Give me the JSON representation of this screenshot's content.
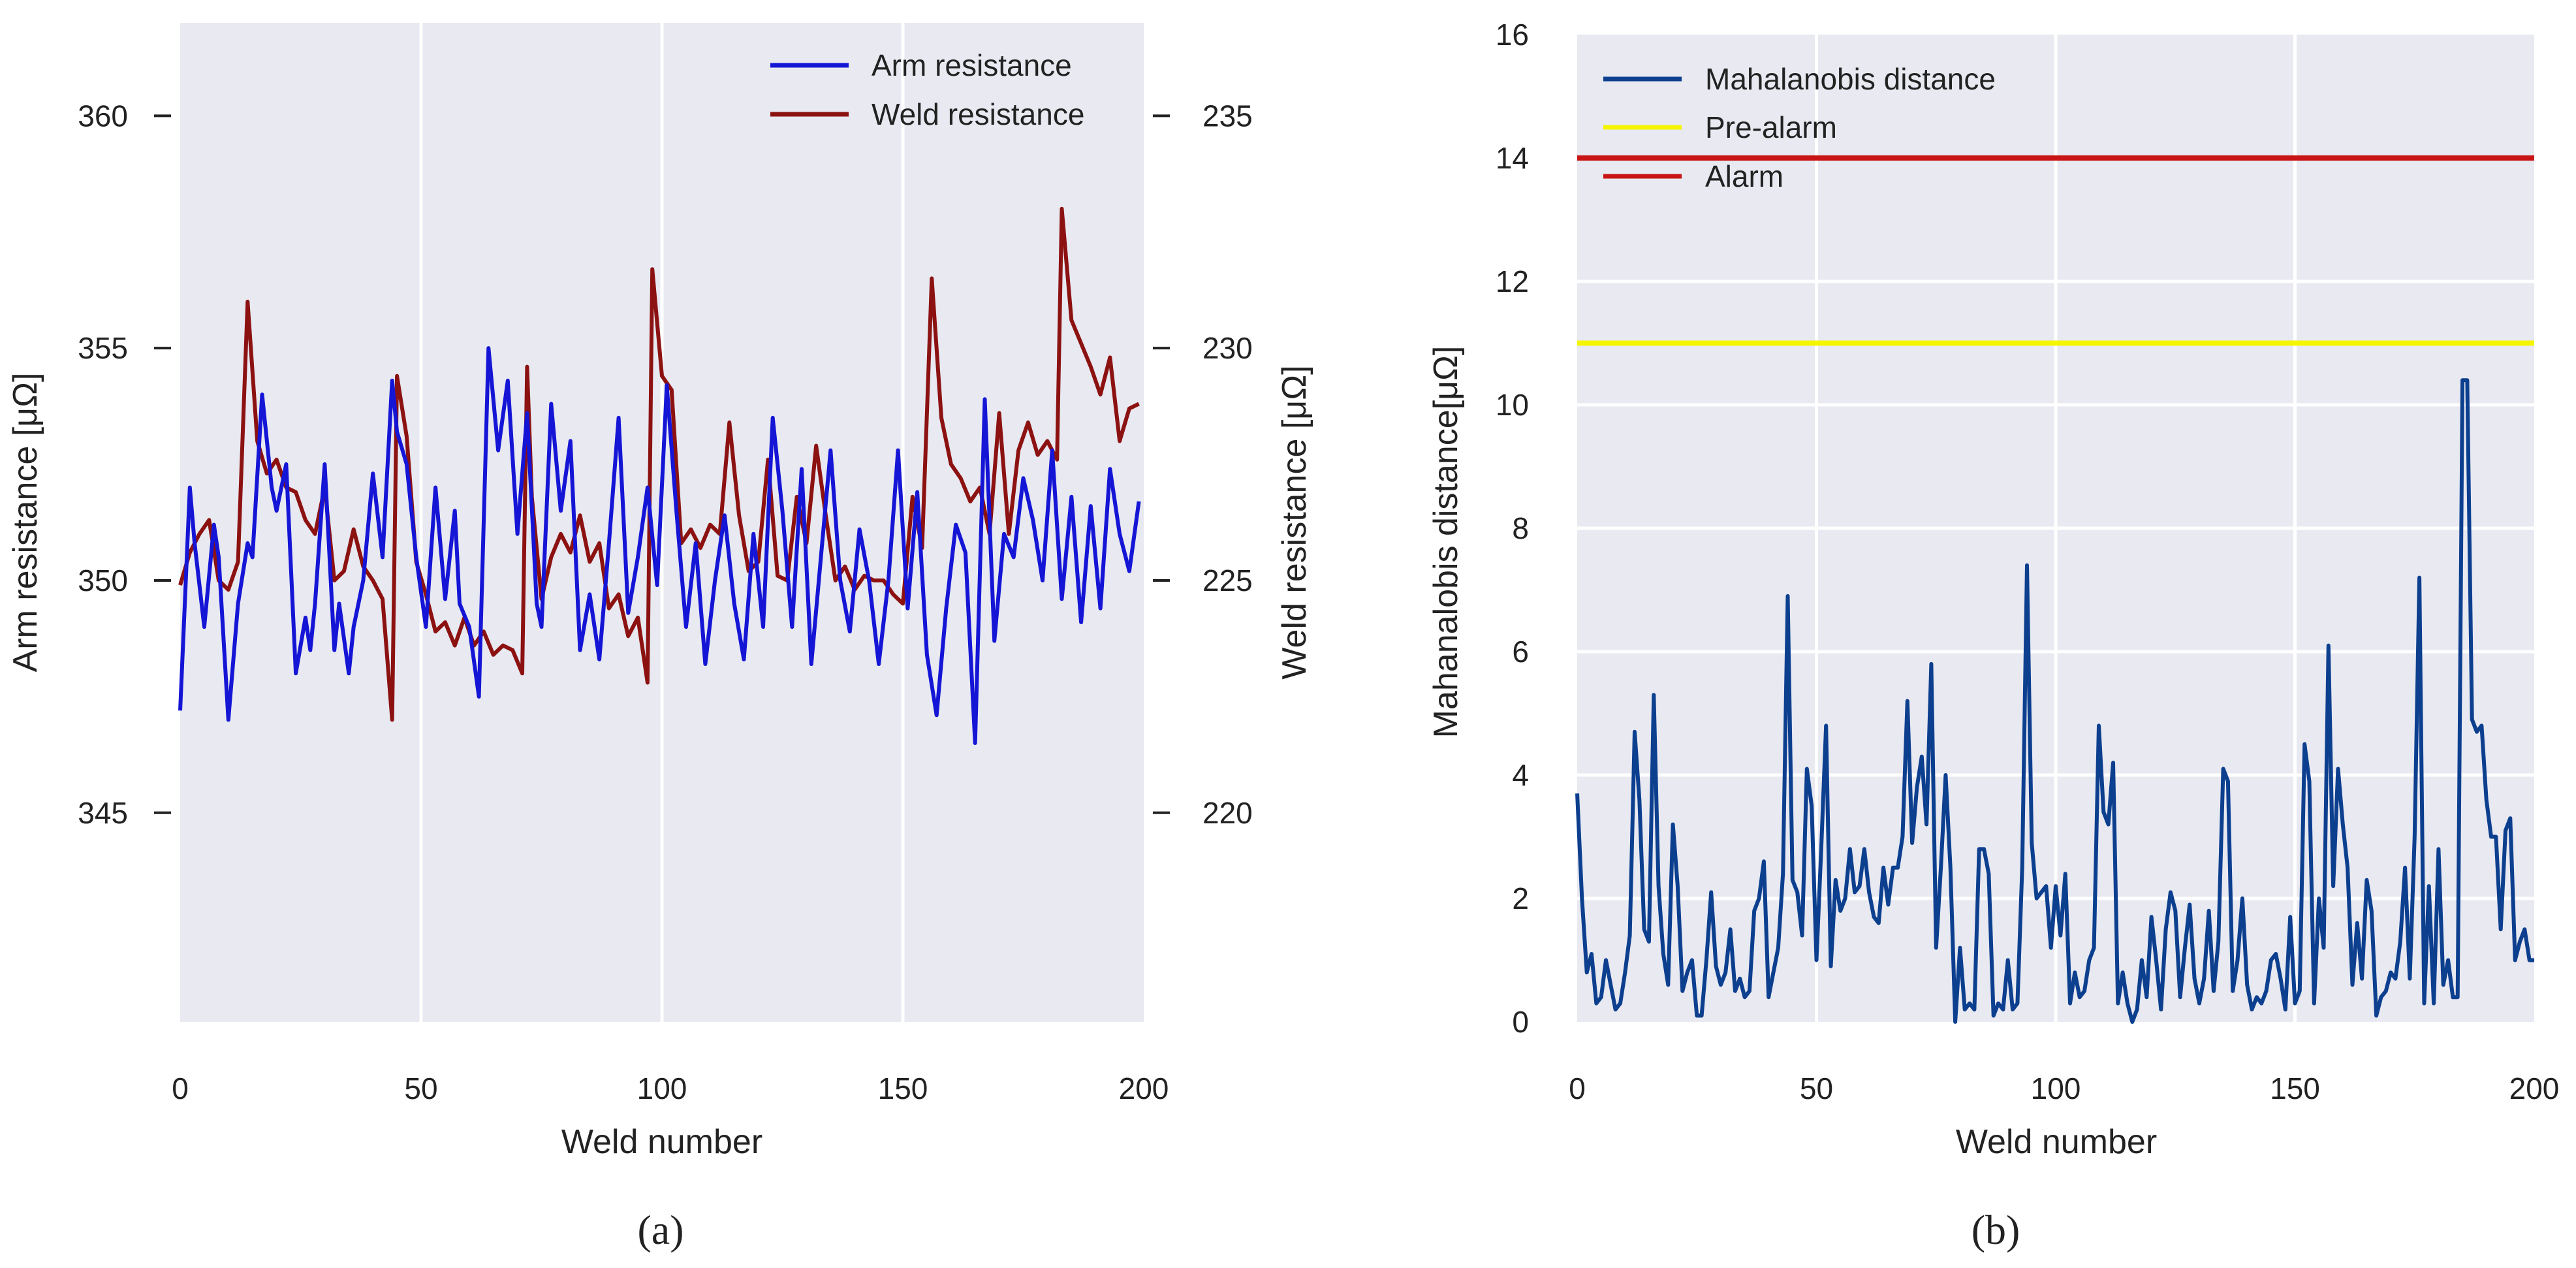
{
  "chart_data": [
    {
      "type": "line",
      "panel": "a",
      "caption": "(a)",
      "xlabel": "Weld number",
      "ylabel_left": "Arm resistance [μΩ]",
      "ylabel_right": "Weld resistance [μΩ]",
      "xlim": [
        0,
        200
      ],
      "ylim_left": [
        340.5,
        362.0
      ],
      "ylim_right": [
        215.5,
        237.0
      ],
      "xticks": [
        0,
        50,
        100,
        150,
        200
      ],
      "yticks_left": [
        345,
        350,
        355,
        360
      ],
      "yticks_right": [
        220,
        225,
        230,
        235
      ],
      "grid": true,
      "legend_position": "top-right",
      "colors": {
        "arm": "#1515d6",
        "weld": "#8c1212"
      },
      "series": [
        {
          "name": "Arm resistance",
          "axis": "left",
          "color": "#1515d6",
          "x": [
            0,
            2,
            3,
            5,
            7,
            8,
            10,
            12,
            14,
            15,
            17,
            19,
            20,
            22,
            24,
            26,
            27,
            28,
            30,
            32,
            33,
            35,
            36,
            38,
            40,
            42,
            44,
            45,
            47,
            49,
            51,
            53,
            55,
            57,
            58,
            60,
            62,
            64,
            66,
            68,
            70,
            72,
            74,
            75,
            77,
            79,
            81,
            83,
            85,
            87,
            89,
            91,
            93,
            95,
            97,
            99,
            101,
            103,
            105,
            107,
            109,
            111,
            113,
            115,
            117,
            119,
            121,
            123,
            125,
            127,
            129,
            131,
            133,
            135,
            137,
            139,
            141,
            143,
            145,
            147,
            149,
            151,
            153,
            155,
            157,
            159,
            161,
            163,
            165,
            167,
            169,
            171,
            173,
            175,
            177,
            179,
            181,
            183,
            185,
            187,
            189,
            191,
            193,
            195,
            197,
            199
          ],
          "values": [
            347.2,
            352.0,
            350.8,
            349.0,
            351.2,
            350.5,
            347.0,
            349.5,
            350.8,
            350.5,
            354.0,
            352.0,
            351.5,
            352.5,
            348.0,
            349.2,
            348.5,
            349.5,
            352.5,
            348.5,
            349.5,
            348.0,
            349.0,
            350.0,
            352.3,
            350.5,
            354.3,
            353.2,
            352.5,
            350.5,
            349.0,
            352.0,
            349.6,
            351.5,
            349.5,
            349.0,
            347.5,
            355.0,
            352.8,
            354.3,
            351.0,
            353.6,
            349.5,
            349.0,
            353.8,
            351.5,
            353.0,
            348.5,
            349.7,
            348.3,
            350.8,
            353.5,
            349.3,
            350.5,
            352.0,
            349.9,
            354.2,
            351.5,
            349.0,
            350.8,
            348.2,
            350.0,
            351.4,
            349.5,
            348.3,
            351.0,
            349.0,
            353.5,
            351.5,
            349.0,
            352.4,
            348.2,
            350.5,
            352.8,
            350.0,
            348.9,
            351.1,
            350.0,
            348.2,
            350.0,
            352.8,
            349.4,
            351.9,
            348.4,
            347.1,
            349.4,
            351.2,
            350.6,
            346.5,
            353.9,
            348.7,
            351.0,
            350.5,
            352.2,
            351.3,
            350.0,
            352.8,
            349.6,
            351.8,
            349.1,
            351.6,
            349.4,
            352.4,
            351.0,
            350.2,
            351.7
          ]
        },
        {
          "name": "Weld resistance",
          "axis": "right",
          "color": "#8c1212",
          "x": [
            0,
            2,
            4,
            6,
            8,
            10,
            12,
            14,
            16,
            18,
            20,
            22,
            24,
            26,
            28,
            30,
            32,
            34,
            36,
            38,
            40,
            42,
            44,
            45,
            47,
            49,
            51,
            53,
            55,
            57,
            59,
            61,
            63,
            65,
            67,
            69,
            71,
            72,
            73,
            75,
            77,
            79,
            81,
            83,
            85,
            87,
            89,
            91,
            93,
            95,
            97,
            98,
            100,
            102,
            104,
            106,
            108,
            110,
            112,
            114,
            116,
            118,
            120,
            122,
            124,
            126,
            128,
            130,
            132,
            134,
            136,
            138,
            140,
            142,
            144,
            146,
            148,
            150,
            152,
            154,
            156,
            158,
            160,
            162,
            164,
            166,
            168,
            170,
            172,
            174,
            176,
            178,
            180,
            182,
            183,
            185,
            187,
            189,
            191,
            193,
            195,
            197,
            199
          ],
          "values": [
            224.9,
            225.6,
            226.0,
            226.3,
            225.0,
            224.8,
            225.4,
            231.0,
            228.0,
            227.3,
            227.6,
            227.0,
            226.9,
            226.3,
            226.0,
            227.0,
            225.0,
            225.2,
            226.1,
            225.3,
            225.0,
            224.6,
            222.0,
            229.4,
            228.1,
            225.4,
            224.7,
            223.9,
            224.1,
            223.6,
            224.2,
            223.6,
            223.9,
            223.4,
            223.6,
            223.5,
            223.0,
            229.6,
            226.8,
            224.6,
            225.5,
            226.0,
            225.6,
            226.4,
            225.4,
            225.8,
            224.4,
            224.7,
            223.8,
            224.2,
            222.8,
            231.7,
            229.4,
            229.1,
            225.8,
            226.1,
            225.7,
            226.2,
            226.0,
            228.4,
            226.4,
            225.2,
            225.4,
            227.6,
            225.1,
            225.0,
            226.8,
            225.8,
            227.9,
            226.4,
            225.0,
            225.3,
            224.8,
            225.1,
            225.0,
            225.0,
            224.7,
            224.5,
            226.8,
            225.7,
            231.5,
            228.5,
            227.5,
            227.2,
            226.7,
            227.0,
            226.0,
            228.6,
            226.0,
            227.8,
            228.4,
            227.7,
            228.0,
            227.6,
            233.0,
            230.6,
            230.1,
            229.6,
            229.0,
            229.8,
            228.0,
            228.7,
            228.8
          ]
        }
      ]
    },
    {
      "type": "line",
      "panel": "b",
      "caption": "(b)",
      "xlabel": "Weld number",
      "ylabel": "Mahanalobis distance[μΩ]",
      "xlim": [
        0,
        200
      ],
      "ylim": [
        0,
        16
      ],
      "xticks": [
        0,
        50,
        100,
        150,
        200
      ],
      "yticks": [
        0,
        2,
        4,
        6,
        8,
        10,
        12,
        14,
        16
      ],
      "grid": true,
      "legend_position": "top-left",
      "colors": {
        "mahalanobis": "#0d3f8f",
        "pre_alarm": "#f5f500",
        "alarm": "#c81414"
      },
      "series": [
        {
          "name": "Mahalanobis distance",
          "color": "#0d3f8f",
          "x": [
            0,
            1,
            2,
            3,
            4,
            5,
            6,
            7,
            8,
            9,
            10,
            11,
            12,
            13,
            14,
            15,
            16,
            17,
            18,
            19,
            20,
            21,
            22,
            23,
            24,
            25,
            26,
            27,
            28,
            29,
            30,
            31,
            32,
            33,
            34,
            35,
            36,
            37,
            38,
            39,
            40,
            41,
            42,
            43,
            44,
            45,
            46,
            47,
            48,
            49,
            50,
            51,
            52,
            53,
            54,
            55,
            56,
            57,
            58,
            59,
            60,
            61,
            62,
            63,
            64,
            65,
            66,
            67,
            68,
            69,
            70,
            71,
            72,
            73,
            74,
            75,
            76,
            77,
            78,
            79,
            80,
            81,
            82,
            83,
            84,
            85,
            86,
            87,
            88,
            89,
            90,
            91,
            92,
            93,
            94,
            95,
            96,
            97,
            98,
            99,
            100,
            101,
            102,
            103,
            104,
            105,
            106,
            107,
            108,
            109,
            110,
            111,
            112,
            113,
            114,
            115,
            116,
            117,
            118,
            119,
            120,
            121,
            122,
            123,
            124,
            125,
            126,
            127,
            128,
            129,
            130,
            131,
            132,
            133,
            134,
            135,
            136,
            137,
            138,
            139,
            140,
            141,
            142,
            143,
            144,
            145,
            146,
            147,
            148,
            149,
            150,
            151,
            152,
            153,
            154,
            155,
            156,
            157,
            158,
            159,
            160,
            161,
            162,
            163,
            164,
            165,
            166,
            167,
            168,
            169,
            170,
            171,
            172,
            173,
            174,
            175,
            176,
            177,
            178,
            179,
            180,
            181,
            182,
            183,
            184,
            185,
            186,
            187,
            188,
            189,
            190,
            191,
            192,
            193,
            194,
            195,
            196,
            197,
            198,
            199,
            200
          ],
          "values": [
            3.7,
            2.0,
            0.8,
            1.1,
            0.3,
            0.4,
            1.0,
            0.6,
            0.2,
            0.3,
            0.8,
            1.4,
            4.7,
            3.6,
            1.5,
            1.3,
            5.3,
            2.2,
            1.1,
            0.6,
            3.2,
            2.2,
            0.5,
            0.8,
            1.0,
            0.1,
            0.1,
            1.0,
            2.1,
            0.9,
            0.6,
            0.8,
            1.5,
            0.5,
            0.7,
            0.4,
            0.5,
            1.8,
            2.0,
            2.6,
            0.4,
            0.8,
            1.2,
            2.4,
            6.9,
            2.3,
            2.1,
            1.4,
            4.1,
            3.5,
            1.0,
            2.8,
            4.8,
            0.9,
            2.3,
            1.8,
            2.0,
            2.8,
            2.1,
            2.2,
            2.8,
            2.1,
            1.7,
            1.6,
            2.5,
            1.9,
            2.5,
            2.5,
            3.0,
            5.2,
            2.9,
            3.8,
            4.3,
            3.2,
            5.8,
            1.2,
            2.5,
            4.0,
            2.5,
            0.0,
            1.2,
            0.2,
            0.3,
            0.2,
            2.8,
            2.8,
            2.4,
            0.1,
            0.3,
            0.2,
            1.0,
            0.2,
            0.3,
            2.5,
            7.4,
            2.9,
            2.0,
            2.1,
            2.2,
            1.2,
            2.2,
            1.4,
            2.4,
            0.3,
            0.8,
            0.4,
            0.5,
            1.0,
            1.2,
            4.8,
            3.4,
            3.2,
            4.2,
            0.3,
            0.8,
            0.3,
            0.0,
            0.2,
            1.0,
            0.4,
            1.7,
            1.0,
            0.2,
            1.5,
            2.1,
            1.8,
            0.4,
            1.2,
            1.9,
            0.7,
            0.3,
            0.7,
            1.8,
            0.5,
            1.3,
            4.1,
            3.9,
            0.5,
            1.0,
            2.0,
            0.6,
            0.2,
            0.4,
            0.3,
            0.5,
            1.0,
            1.1,
            0.7,
            0.2,
            1.7,
            0.3,
            0.5,
            4.5,
            3.9,
            0.3,
            2.0,
            1.2,
            6.1,
            2.2,
            4.1,
            3.2,
            2.5,
            0.6,
            1.6,
            0.7,
            2.3,
            1.8,
            0.1,
            0.4,
            0.5,
            0.8,
            0.7,
            1.3,
            2.5,
            0.7,
            3.0,
            7.2,
            0.3,
            2.2,
            0.3,
            2.8,
            0.6,
            1.0,
            0.4,
            0.4,
            10.4,
            10.4,
            4.9,
            4.7,
            4.8,
            3.6,
            3.0,
            3.0,
            1.5,
            3.1,
            3.3,
            1.0,
            1.3,
            1.5,
            1.0,
            1.0
          ]
        },
        {
          "name": "Pre-alarm",
          "color": "#f5f500",
          "x": [
            0,
            200
          ],
          "values": [
            11,
            11
          ]
        },
        {
          "name": "Alarm",
          "color": "#c81414",
          "x": [
            0,
            200
          ],
          "values": [
            14,
            14
          ]
        }
      ]
    }
  ]
}
